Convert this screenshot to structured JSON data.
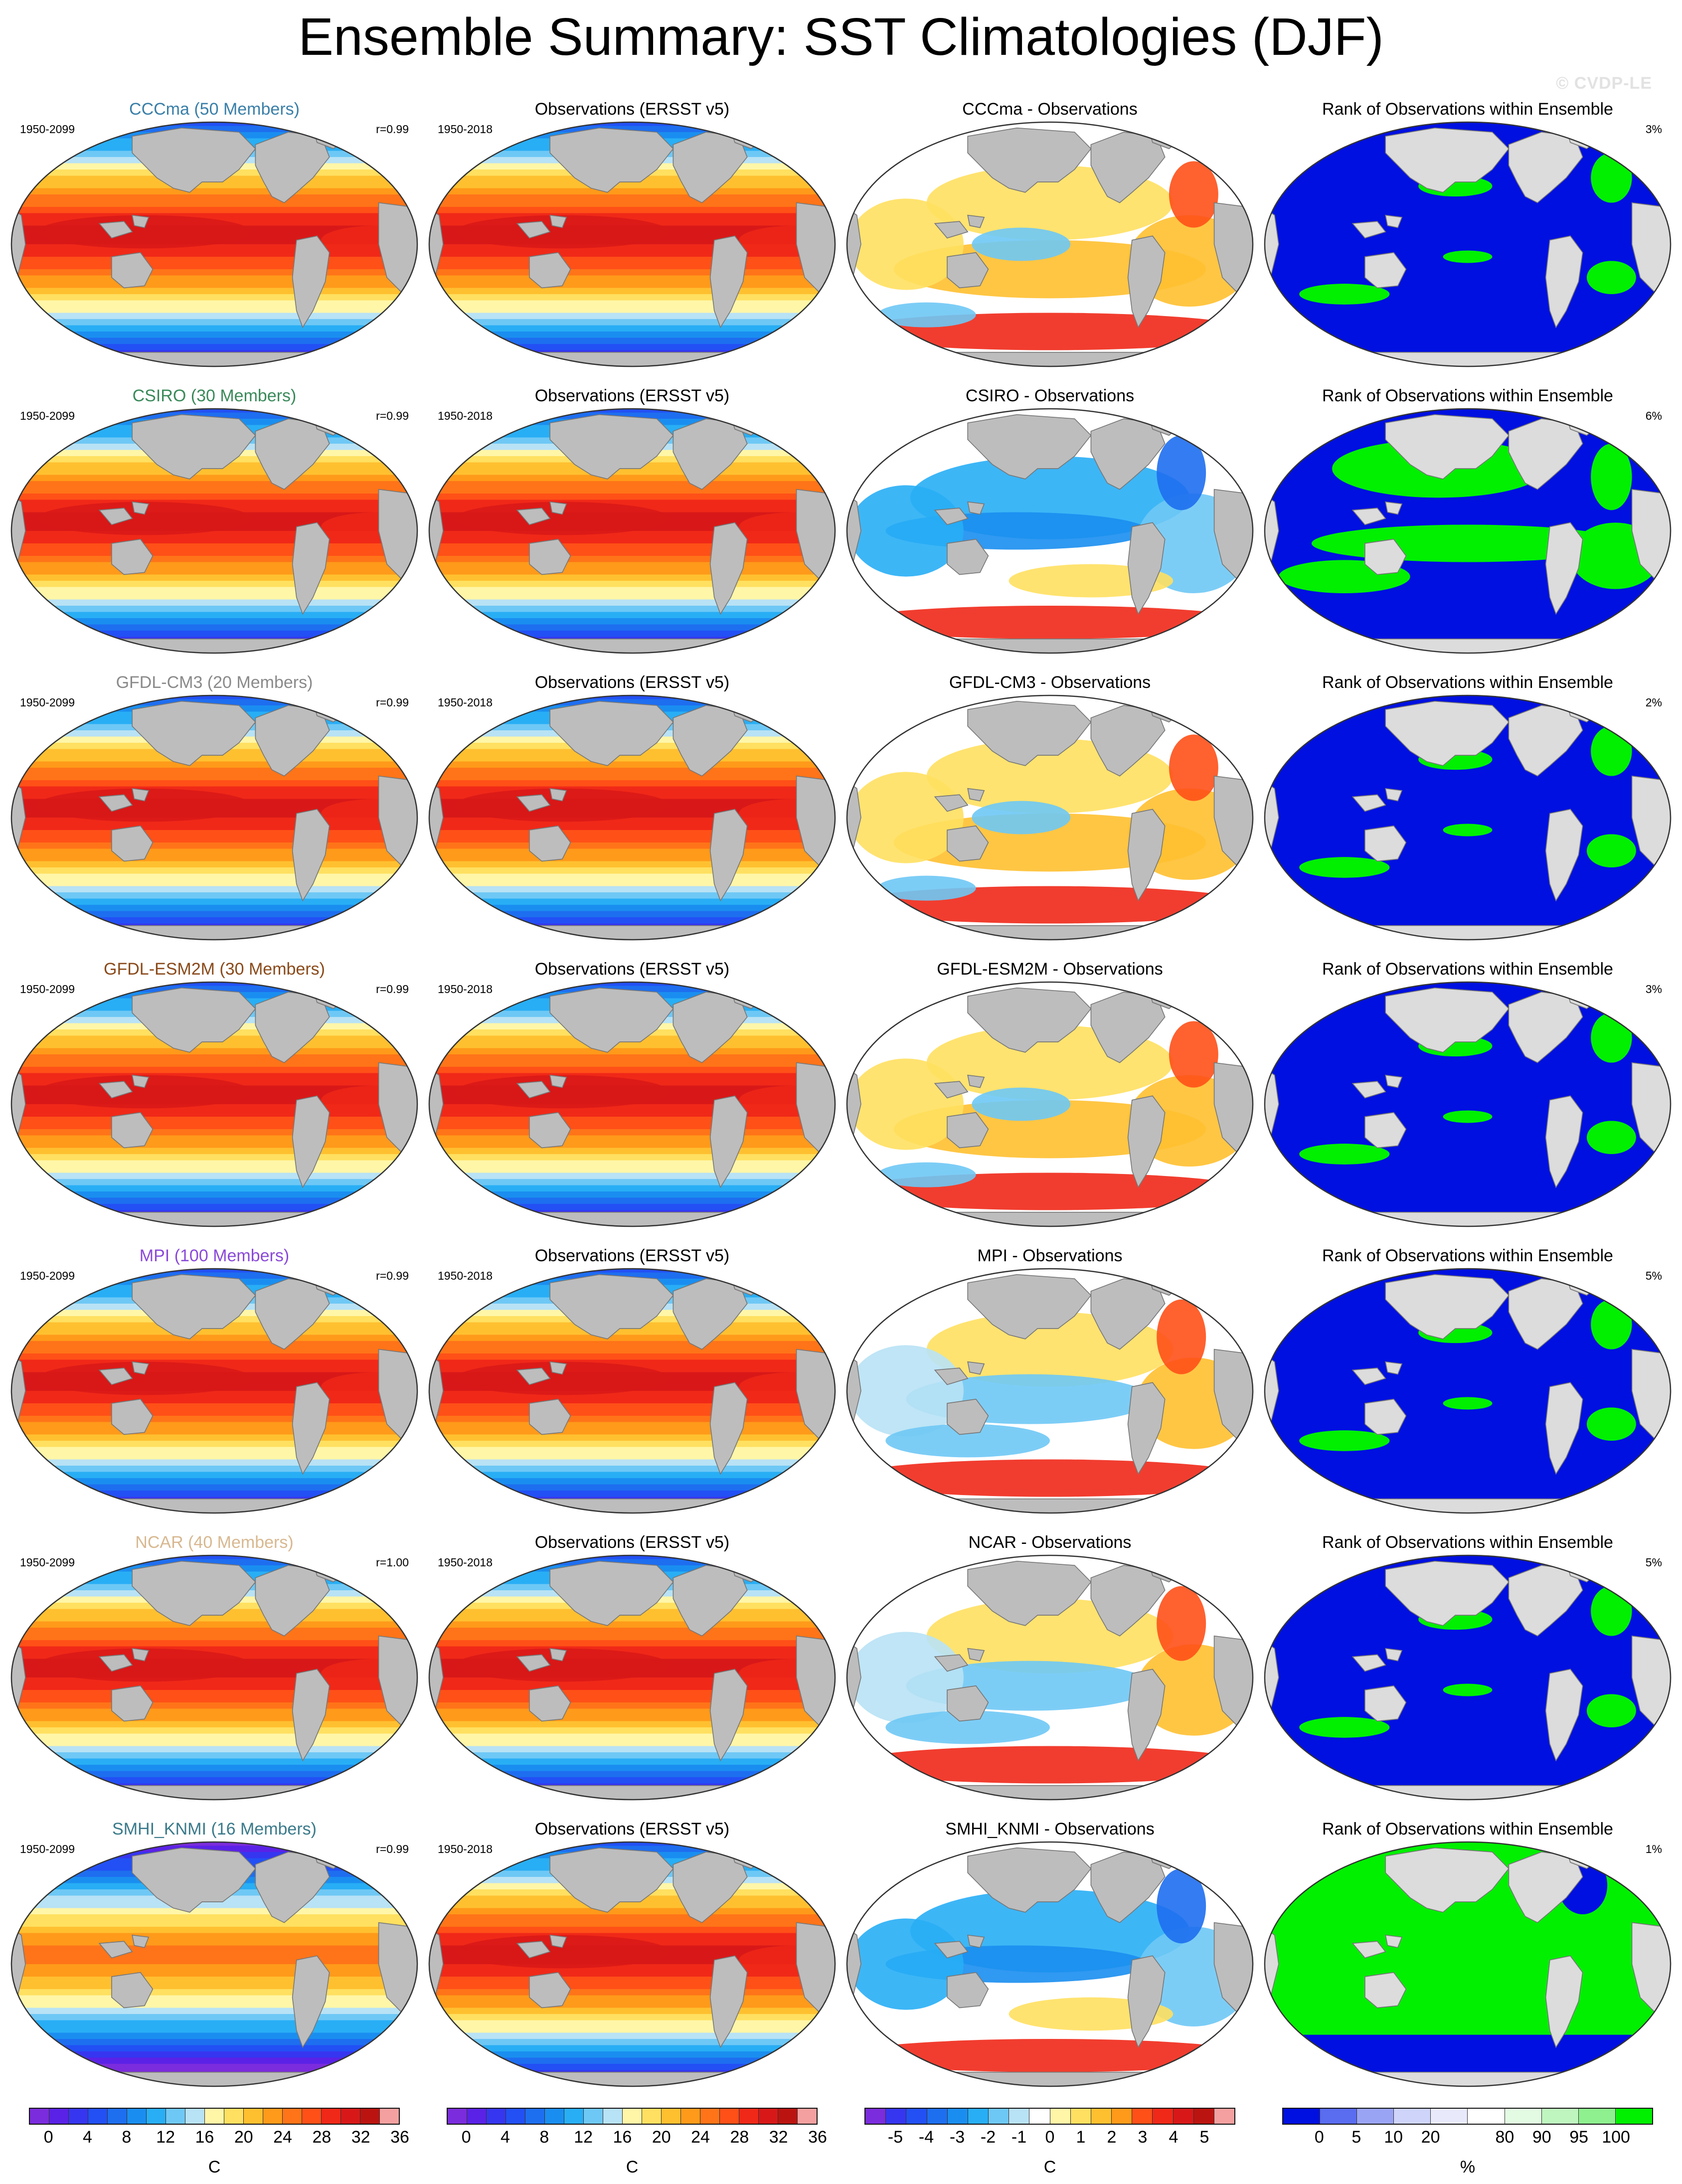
{
  "title": "Ensemble Summary: SST Climatologies (DJF)",
  "watermark": "© CVDP-LE",
  "colors": {
    "land": "#bdbdbd",
    "land_rank": "#dcdcdc",
    "sst_scale": [
      "#7b2cdc",
      "#5a22e6",
      "#3636f0",
      "#2250f5",
      "#1e6ef0",
      "#1a8ef0",
      "#28aef5",
      "#6ec8f5",
      "#b8e2f5",
      "#fff6a8",
      "#ffe060",
      "#ffc030",
      "#ff9a1a",
      "#ff7418",
      "#ff5018",
      "#f02818",
      "#d81818",
      "#bb1410",
      "#f5a0a0"
    ],
    "diff_scale": [
      "#7b2cdc",
      "#3636f0",
      "#2250f5",
      "#1e6ef0",
      "#1a8ef0",
      "#28aef5",
      "#6ec8f5",
      "#b8e2f5",
      "#ffffff",
      "#fff6a8",
      "#ffe060",
      "#ffc030",
      "#ff9a1a",
      "#ff5018",
      "#f02818",
      "#d81818",
      "#bb1410",
      "#f5a0a0"
    ],
    "rank_scale": [
      "#0010e0",
      "#5a6cf0",
      "#9aa4f5",
      "#cfd4fa",
      "#e8eafc",
      "#ffffff",
      "#e2fbe2",
      "#bff5bf",
      "#8ef08e",
      "#00f000"
    ]
  },
  "rows": [
    {
      "model": {
        "title": "CCCma (50 Members)",
        "color": "#3a7fa8",
        "period": "1950-2099",
        "corr": "r=0.99",
        "sst": "warm"
      },
      "obs": {
        "title": "Observations (ERSST v5)",
        "period": "1950-2018"
      },
      "diff": {
        "title": "CCCma - Observations",
        "pattern": "warm"
      },
      "rank": {
        "title": "Rank of Observations within Ensemble",
        "pct": "3%",
        "pattern": "blue"
      }
    },
    {
      "model": {
        "title": "CSIRO (30 Members)",
        "color": "#3a8a5a",
        "period": "1950-2099",
        "corr": "r=0.99",
        "sst": "warm"
      },
      "obs": {
        "title": "Observations (ERSST v5)",
        "period": "1950-2018"
      },
      "diff": {
        "title": "CSIRO - Observations",
        "pattern": "cool"
      },
      "rank": {
        "title": "Rank of Observations within Ensemble",
        "pct": "6%",
        "pattern": "mixed"
      }
    },
    {
      "model": {
        "title": "GFDL-CM3 (20 Members)",
        "color": "#8a8a8a",
        "period": "1950-2099",
        "corr": "r=0.99",
        "sst": "warm"
      },
      "obs": {
        "title": "Observations (ERSST v5)",
        "period": "1950-2018"
      },
      "diff": {
        "title": "GFDL-CM3 - Observations",
        "pattern": "warm"
      },
      "rank": {
        "title": "Rank of Observations within Ensemble",
        "pct": "2%",
        "pattern": "blue"
      }
    },
    {
      "model": {
        "title": "GFDL-ESM2M (30 Members)",
        "color": "#8a4a1a",
        "period": "1950-2099",
        "corr": "r=0.99",
        "sst": "warm"
      },
      "obs": {
        "title": "Observations (ERSST v5)",
        "period": "1950-2018"
      },
      "diff": {
        "title": "GFDL-ESM2M - Observations",
        "pattern": "warm"
      },
      "rank": {
        "title": "Rank of Observations within Ensemble",
        "pct": "3%",
        "pattern": "blue"
      }
    },
    {
      "model": {
        "title": "MPI (100 Members)",
        "color": "#8a4ad8",
        "period": "1950-2099",
        "corr": "r=0.99",
        "sst": "warm"
      },
      "obs": {
        "title": "Observations (ERSST v5)",
        "period": "1950-2018"
      },
      "diff": {
        "title": "MPI - Observations",
        "pattern": "mixed"
      },
      "rank": {
        "title": "Rank of Observations within Ensemble",
        "pct": "5%",
        "pattern": "blue"
      }
    },
    {
      "model": {
        "title": "NCAR (40 Members)",
        "color": "#d8b890",
        "period": "1950-2099",
        "corr": "r=1.00",
        "sst": "warm"
      },
      "obs": {
        "title": "Observations (ERSST v5)",
        "period": "1950-2018"
      },
      "diff": {
        "title": "NCAR - Observations",
        "pattern": "mixed"
      },
      "rank": {
        "title": "Rank of Observations within Ensemble",
        "pct": "5%",
        "pattern": "blue"
      }
    },
    {
      "model": {
        "title": "SMHI_KNMI (16 Members)",
        "color": "#3a7a8a",
        "period": "1950-2099",
        "corr": "r=0.99",
        "sst": "cool"
      },
      "obs": {
        "title": "Observations (ERSST v5)",
        "period": "1950-2018"
      },
      "diff": {
        "title": "SMHI_KNMI - Observations",
        "pattern": "cool"
      },
      "rank": {
        "title": "Rank of Observations within Ensemble",
        "pct": "1%",
        "pattern": "green"
      }
    }
  ],
  "colorbars": [
    {
      "ticks": [
        "0",
        "4",
        "8",
        "12",
        "16",
        "20",
        "24",
        "28",
        "32",
        "36"
      ],
      "unit": "C",
      "scale": "sst_scale"
    },
    {
      "ticks": [
        "0",
        "4",
        "8",
        "12",
        "16",
        "20",
        "24",
        "28",
        "32",
        "36"
      ],
      "unit": "C",
      "scale": "sst_scale"
    },
    {
      "ticks": [
        "-5",
        "-4",
        "-3",
        "-2",
        "-1",
        "0",
        "1",
        "2",
        "3",
        "4",
        "5"
      ],
      "unit": "C",
      "scale": "diff_scale"
    },
    {
      "ticks": [
        "0",
        "5",
        "10",
        "20",
        "80",
        "90",
        "95",
        "100"
      ],
      "unit": "%",
      "scale": "rank_scale"
    }
  ]
}
